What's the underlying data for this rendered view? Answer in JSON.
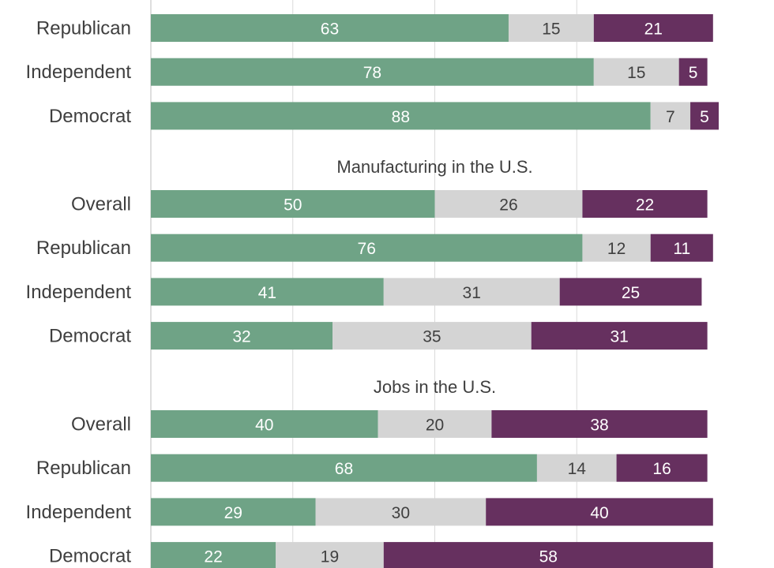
{
  "chart_data": {
    "type": "bar",
    "orientation": "horizontal",
    "stacked": true,
    "grid": true,
    "xlim": [
      0,
      100
    ],
    "colors": [
      "#6fa386",
      "#d4d4d4",
      "#66305f"
    ],
    "label_colors": [
      "#ffffff",
      "#404040",
      "#ffffff"
    ],
    "groups": [
      {
        "title": "",
        "rows": [
          {
            "label": "Republican",
            "values": [
              63,
              15,
              21
            ]
          },
          {
            "label": "Independent",
            "values": [
              78,
              15,
              5
            ]
          },
          {
            "label": "Democrat",
            "values": [
              88,
              7,
              5
            ]
          }
        ]
      },
      {
        "title": "Manufacturing in the U.S.",
        "rows": [
          {
            "label": "Overall",
            "values": [
              50,
              26,
              22
            ]
          },
          {
            "label": "Republican",
            "values": [
              76,
              12,
              11
            ]
          },
          {
            "label": "Independent",
            "values": [
              41,
              31,
              25
            ]
          },
          {
            "label": "Democrat",
            "values": [
              32,
              35,
              31
            ]
          }
        ]
      },
      {
        "title": "Jobs in the U.S.",
        "rows": [
          {
            "label": "Overall",
            "values": [
              40,
              20,
              38
            ]
          },
          {
            "label": "Republican",
            "values": [
              68,
              14,
              16
            ]
          },
          {
            "label": "Independent",
            "values": [
              29,
              30,
              40
            ]
          },
          {
            "label": "Democrat",
            "values": [
              22,
              19,
              58
            ]
          }
        ]
      }
    ]
  }
}
